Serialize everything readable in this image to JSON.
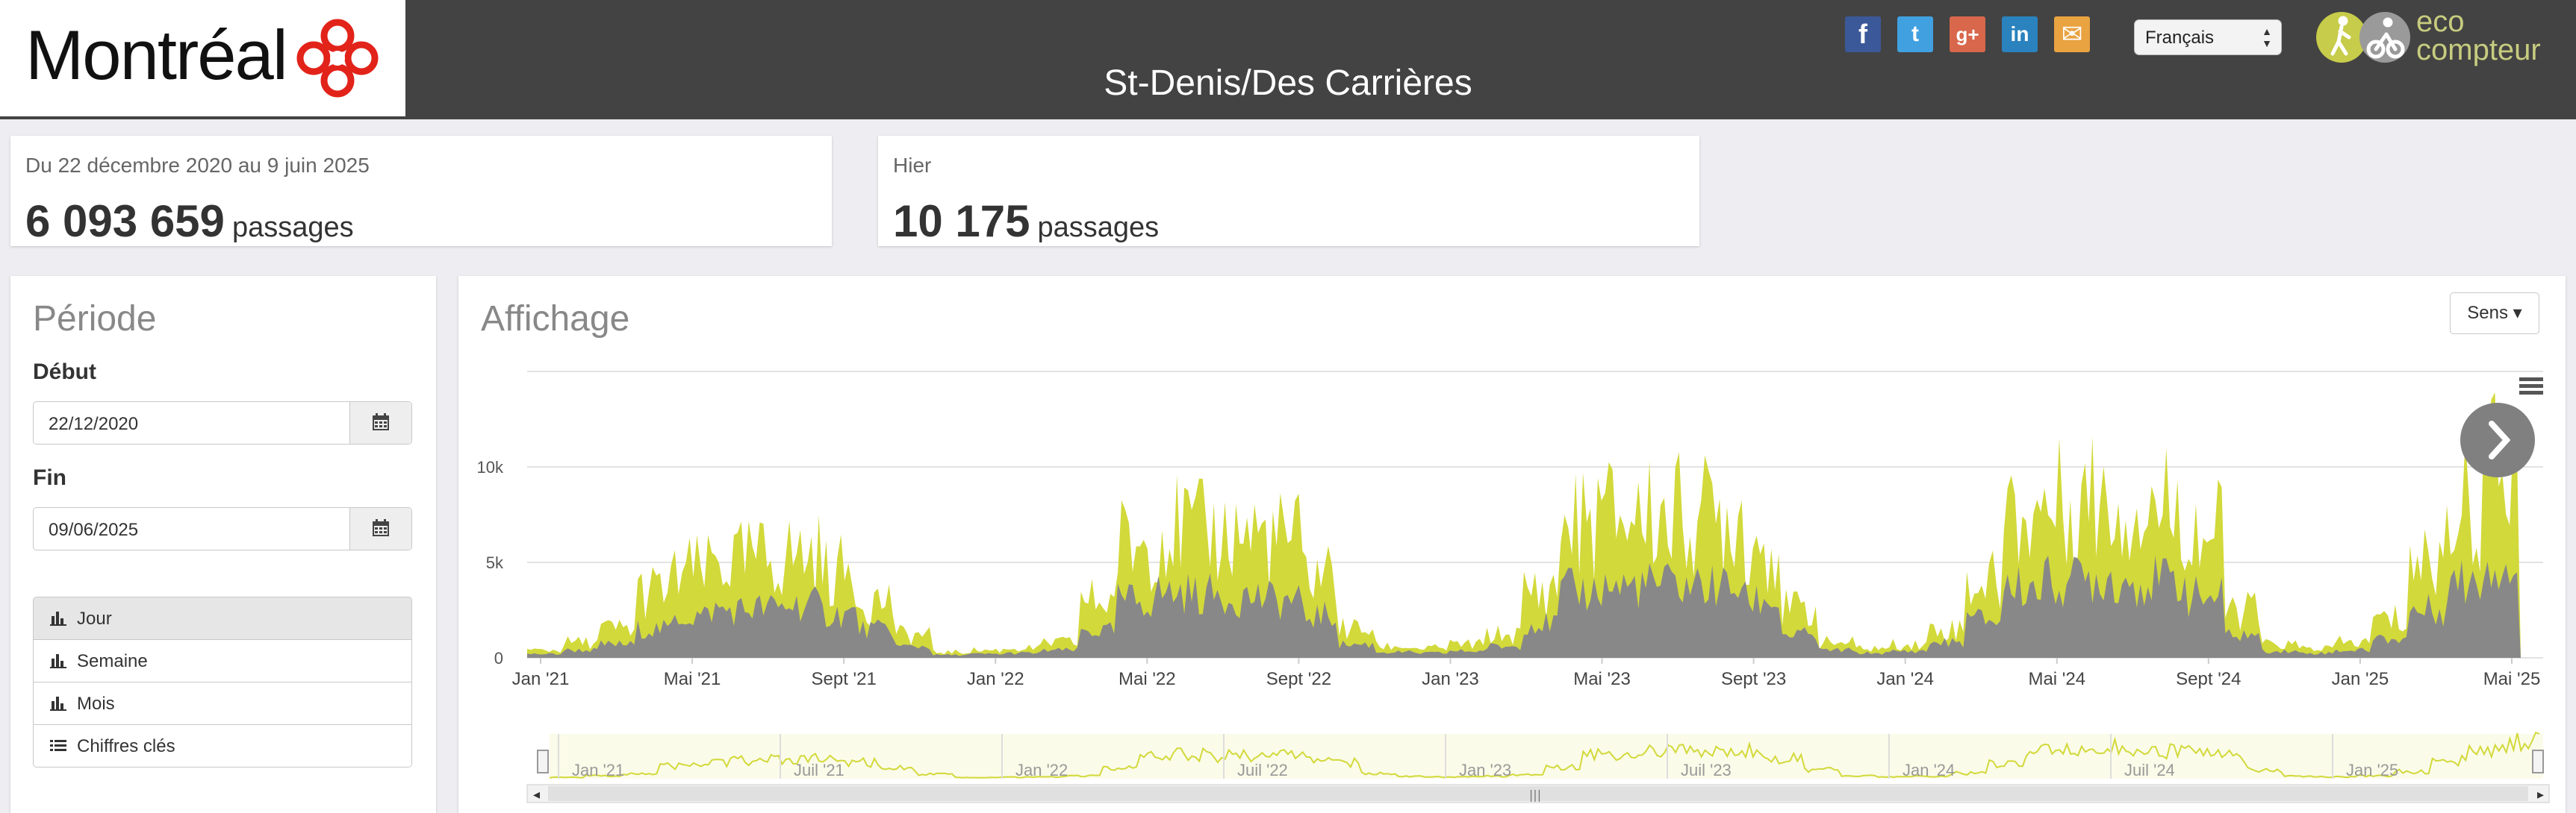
{
  "header": {
    "city_logo_text": "Montréal",
    "station_title": "St-Denis/Des Carrières",
    "language_select": "Français",
    "eco_logo_text_line1": "eco",
    "eco_logo_text_line2": "compteur",
    "social": [
      {
        "name": "facebook",
        "glyph": "f",
        "color": "#3b5998"
      },
      {
        "name": "twitter",
        "glyph": "t",
        "color": "#41a1e0"
      },
      {
        "name": "google-plus",
        "glyph": "g+",
        "color": "#d8674c"
      },
      {
        "name": "linkedin",
        "glyph": "in",
        "color": "#2a83be"
      },
      {
        "name": "email",
        "glyph": "✉",
        "color": "#e9a341"
      }
    ]
  },
  "stats": {
    "total": {
      "label": "Du 22 décembre 2020 au 9 juin 2025",
      "value": "6 093 659",
      "unit": "passages"
    },
    "yesterday": {
      "label": "Hier",
      "value": "10 175",
      "unit": "passages"
    }
  },
  "period_panel": {
    "title": "Période",
    "start_label": "Début",
    "start_value": "22/12/2020",
    "end_label": "Fin",
    "end_value": "09/06/2025",
    "views": [
      {
        "label": "Jour",
        "icon": "bar-chart-icon",
        "active": true
      },
      {
        "label": "Semaine",
        "icon": "bar-chart-icon",
        "active": false
      },
      {
        "label": "Mois",
        "icon": "bar-chart-icon",
        "active": false
      },
      {
        "label": "Chiffres clés",
        "icon": "list-icon",
        "active": false
      }
    ]
  },
  "chart_panel": {
    "title": "Affichage",
    "sens_button": "Sens ▾",
    "menu_icon": "hamburger-icon",
    "next_icon": "chevron-right-icon"
  },
  "chart_data": {
    "type": "area",
    "x_ticks": [
      "Jan '21",
      "Mai '21",
      "Sept '21",
      "Jan '22",
      "Mai '22",
      "Sept '22",
      "Jan '23",
      "Mai '23",
      "Sept '23",
      "Jan '24",
      "Mai '24",
      "Sept '24",
      "Jan '25",
      "Mai '25"
    ],
    "y_ticks": [
      "0",
      "5k",
      "10k"
    ],
    "ylim": [
      0,
      15000
    ],
    "navigator_ticks": [
      "Jan '21",
      "Juil '21",
      "Jan '22",
      "Juil '22",
      "Jan '23",
      "Juil '23",
      "Jan '24",
      "Juil '24",
      "Jan '25"
    ],
    "colors": {
      "total": "#d2d93a",
      "direction": "#888888"
    },
    "series": [
      {
        "values_per_month_total": [
          400,
          800,
          1500,
          3500,
          4500,
          5000,
          5200,
          5400,
          4500,
          3000,
          1200,
          300,
          400,
          500,
          800,
          3000,
          6000,
          6800,
          6500,
          6500,
          6200,
          4500,
          1500,
          600,
          500,
          700,
          1200,
          3500,
          7000,
          7500,
          7500,
          7500,
          7500,
          6000,
          2500,
          800,
          500,
          700,
          1500,
          4000,
          7500,
          8000,
          8500,
          8000,
          8000,
          6500,
          2500,
          700,
          500,
          800,
          2000,
          5000,
          8000,
          10000
        ]
      },
      {
        "values_per_month_direction": [
          200,
          400,
          700,
          1500,
          2200,
          2500,
          2600,
          2800,
          2300,
          1500,
          600,
          150,
          200,
          250,
          400,
          1400,
          3000,
          3400,
          3300,
          3200,
          3000,
          2200,
          700,
          300,
          250,
          350,
          600,
          1800,
          3500,
          3700,
          3800,
          3800,
          3700,
          3000,
          1200,
          400,
          250,
          350,
          800,
          2000,
          3700,
          4000,
          4200,
          4000,
          4000,
          3200,
          1200,
          350,
          250,
          400,
          1000,
          2500,
          4000,
          5000
        ]
      }
    ]
  }
}
